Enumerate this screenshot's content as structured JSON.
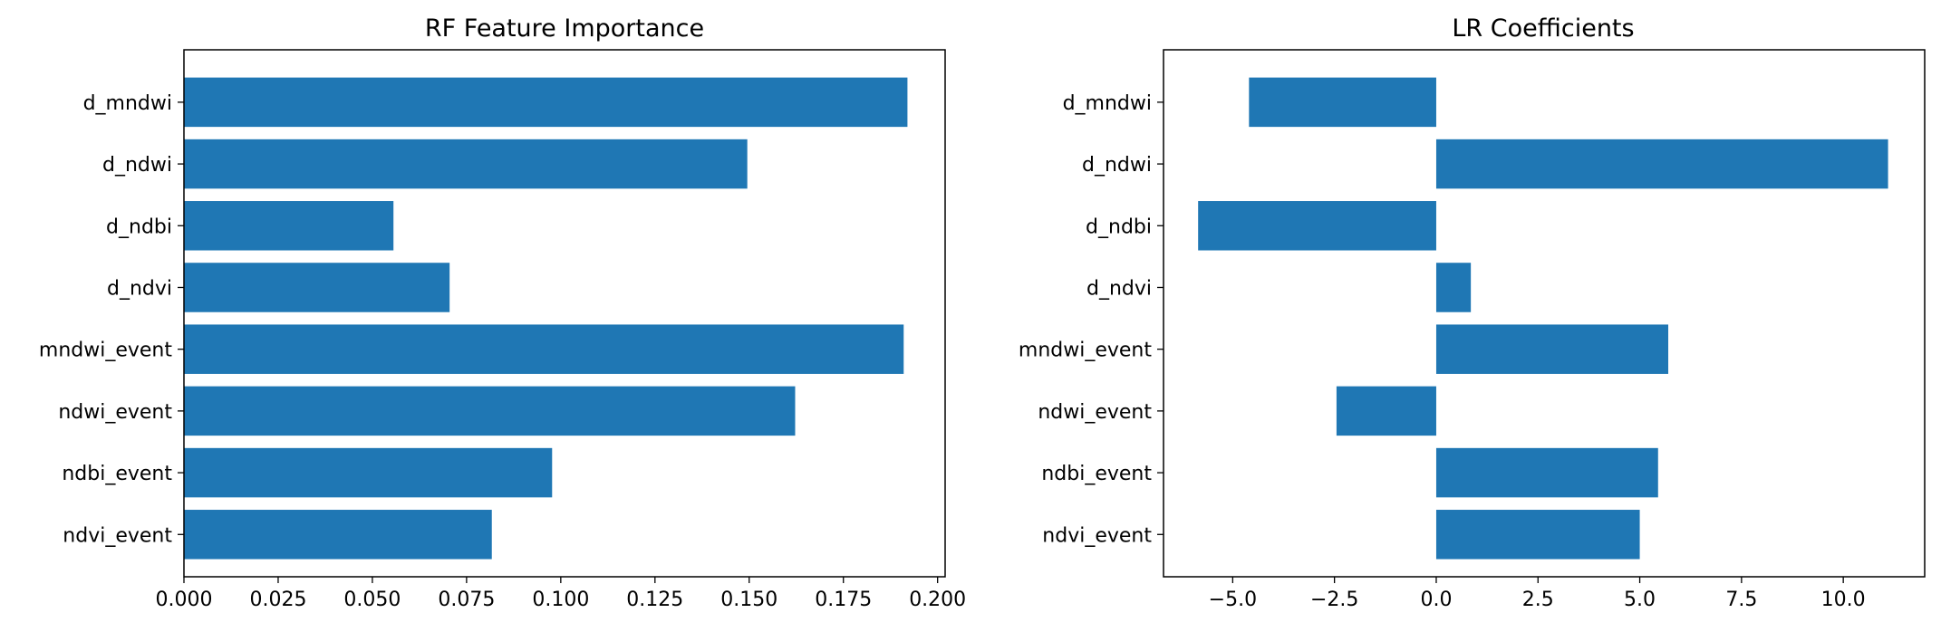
{
  "chart_data": [
    {
      "type": "bar",
      "orientation": "horizontal",
      "title": "RF Feature Importance",
      "xlabel": "",
      "ylabel": "",
      "categories": [
        "d_mndwi",
        "d_ndwi",
        "d_ndbi",
        "d_ndvi",
        "mndwi_event",
        "ndwi_event",
        "ndbi_event",
        "ndvi_event"
      ],
      "values": [
        0.192,
        0.1495,
        0.0556,
        0.0705,
        0.191,
        0.1622,
        0.0977,
        0.0817
      ],
      "xlim": [
        0,
        0.202
      ],
      "xticks": [
        0.0,
        0.025,
        0.05,
        0.075,
        0.1,
        0.125,
        0.15,
        0.175,
        0.2
      ],
      "xtick_labels": [
        "0.000",
        "0.025",
        "0.050",
        "0.075",
        "0.100",
        "0.125",
        "0.150",
        "0.175",
        "0.200"
      ],
      "color": "#1f77b4",
      "grid": false,
      "legend": "none"
    },
    {
      "type": "bar",
      "orientation": "horizontal",
      "title": "LR Coefficients",
      "xlabel": "",
      "ylabel": "",
      "categories": [
        "d_mndwi",
        "d_ndwi",
        "d_ndbi",
        "d_ndvi",
        "mndwi_event",
        "ndwi_event",
        "ndbi_event",
        "ndvi_event"
      ],
      "values": [
        -4.6,
        11.1,
        -5.85,
        0.85,
        5.7,
        -2.45,
        5.45,
        5.0
      ],
      "xlim": [
        -6.7,
        12.0
      ],
      "xticks": [
        -5.0,
        -2.5,
        0.0,
        2.5,
        5.0,
        7.5,
        10.0
      ],
      "xtick_labels": [
        "−5.0",
        "−2.5",
        "0.0",
        "2.5",
        "5.0",
        "7.5",
        "10.0"
      ],
      "color": "#1f77b4",
      "grid": false,
      "legend": "none"
    }
  ]
}
